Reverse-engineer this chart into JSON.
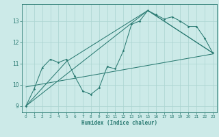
{
  "xlabel": "Humidex (Indice chaleur)",
  "bg_color": "#cceae8",
  "line_color": "#2a7a72",
  "grid_color": "#aad4d0",
  "xlim": [
    -0.5,
    23.5
  ],
  "ylim": [
    8.7,
    13.8
  ],
  "yticks": [
    9,
    10,
    11,
    12,
    13
  ],
  "xticks": [
    0,
    1,
    2,
    3,
    4,
    5,
    6,
    7,
    8,
    9,
    10,
    11,
    12,
    13,
    14,
    15,
    16,
    17,
    18,
    19,
    20,
    21,
    22,
    23
  ],
  "series1_x": [
    0,
    1,
    2,
    3,
    4,
    5,
    6,
    7,
    8,
    9,
    10,
    11,
    12,
    13,
    14,
    15,
    16,
    17,
    18,
    19,
    20,
    21,
    22,
    23
  ],
  "series1_y": [
    9.0,
    9.8,
    10.8,
    11.2,
    11.05,
    11.2,
    10.4,
    9.7,
    9.55,
    9.85,
    10.85,
    10.75,
    11.6,
    12.85,
    13.0,
    13.5,
    13.3,
    13.1,
    13.2,
    13.0,
    12.75,
    12.75,
    12.2,
    11.5
  ],
  "line1_x": [
    0,
    23
  ],
  "line1_y": [
    9.9,
    11.45
  ],
  "line2_x": [
    0,
    5,
    15,
    23
  ],
  "line2_y": [
    9.0,
    11.1,
    13.5,
    11.5
  ],
  "line3_x": [
    0,
    15,
    23
  ],
  "line3_y": [
    9.0,
    13.5,
    11.5
  ]
}
